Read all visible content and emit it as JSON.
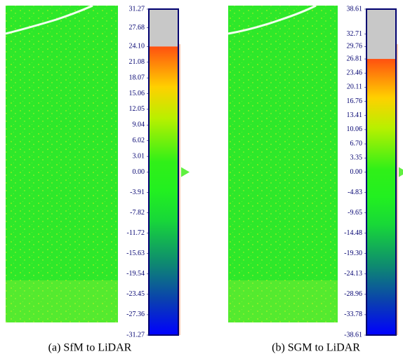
{
  "chart_data": [
    {
      "type": "colorbar",
      "title": "(a) SfM to LiDAR",
      "ylim": [
        -31.27,
        31.27
      ],
      "saturation_max": 24.1,
      "yticks": [
        31.27,
        27.68,
        {
          "value": 24.1,
          "label": "24.10"
        },
        21.08,
        18.07,
        15.06,
        12.05,
        9.04,
        6.02,
        3.01,
        {
          "value": 0,
          "label": "0.00"
        },
        -3.91,
        -7.82,
        -11.72,
        -15.63,
        -19.54,
        -23.45,
        -27.36,
        -31.27
      ]
    },
    {
      "type": "colorbar",
      "title": "(b) SGM to LiDAR",
      "ylim": [
        -38.61,
        38.61
      ],
      "saturation_max": 26.81,
      "yticks": [
        38.61,
        32.71,
        29.76,
        26.81,
        23.46,
        20.11,
        16.76,
        13.41,
        10.06,
        {
          "value": 6.7,
          "label": "6.70"
        },
        {
          "value": 3.35,
          "label": "3.35"
        },
        {
          "value": 0,
          "label": "0.00"
        },
        -4.83,
        -9.65,
        -14.48,
        {
          "value": -19.3,
          "label": "-19.30"
        },
        -24.13,
        -28.96,
        -33.78,
        -38.61
      ]
    }
  ]
}
